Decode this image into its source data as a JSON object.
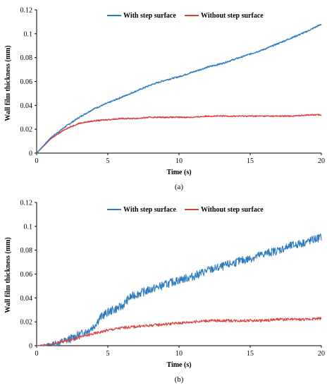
{
  "colors": {
    "with": "#2e7bbf",
    "without": "#d9403f",
    "axis": "#000000"
  },
  "panels": [
    {
      "label": "(a)",
      "legend": [
        "With step surface",
        "Without step surface"
      ],
      "xlabel": "Time (s)",
      "ylabel": "Wall film thickness (mm)",
      "x_ticks": [
        "0",
        "5",
        "10",
        "15",
        "20"
      ],
      "y_ticks": [
        "0",
        "0.02",
        "0.04",
        "0.06",
        "0.08",
        "0.1",
        "0.12"
      ]
    },
    {
      "label": "(b)",
      "legend": [
        "With step surface",
        "Without step surface"
      ],
      "xlabel": "Time (s)",
      "ylabel": "Wall film thickness (mm)",
      "x_ticks": [
        "0",
        "5",
        "10",
        "15",
        "20"
      ],
      "y_ticks": [
        "0",
        "0.02",
        "0.04",
        "0.06",
        "0.08",
        "0.1",
        "0.12"
      ]
    }
  ],
  "chart_data": [
    {
      "type": "line",
      "xlabel": "Time (s)",
      "ylabel": "Wall film thickness (mm)",
      "xlim": [
        0,
        20
      ],
      "ylim": [
        0,
        0.12
      ],
      "legend_position": "top",
      "series": [
        {
          "name": "With step surface",
          "color": "#2e7bbf",
          "x": [
            0,
            1,
            2,
            3,
            4,
            5,
            6,
            7,
            8,
            9,
            10,
            11,
            12,
            13,
            14,
            15,
            16,
            17,
            18,
            19,
            20
          ],
          "y": [
            0,
            0.013,
            0.022,
            0.03,
            0.037,
            0.042,
            0.047,
            0.052,
            0.057,
            0.061,
            0.064,
            0.068,
            0.072,
            0.075,
            0.079,
            0.083,
            0.087,
            0.092,
            0.097,
            0.102,
            0.108
          ]
        },
        {
          "name": "Without step surface",
          "color": "#d9403f",
          "x": [
            0,
            1,
            2,
            3,
            4,
            5,
            6,
            7,
            8,
            9,
            10,
            11,
            12,
            13,
            14,
            15,
            16,
            17,
            18,
            19,
            20
          ],
          "y": [
            0,
            0.012,
            0.02,
            0.025,
            0.027,
            0.028,
            0.029,
            0.029,
            0.03,
            0.03,
            0.03,
            0.03,
            0.031,
            0.031,
            0.031,
            0.031,
            0.031,
            0.031,
            0.031,
            0.032,
            0.032
          ]
        }
      ]
    },
    {
      "type": "line",
      "xlabel": "Time (s)",
      "ylabel": "Wall film thickness (mm)",
      "xlim": [
        0,
        20
      ],
      "ylim": [
        0,
        0.12
      ],
      "legend_position": "top",
      "series": [
        {
          "name": "With step surface",
          "color": "#2e7bbf",
          "x": [
            0,
            1,
            2,
            3,
            3.5,
            4,
            4.5,
            5,
            6,
            6.5,
            7,
            8,
            9,
            10,
            11,
            12,
            13,
            14,
            15,
            16,
            17,
            18,
            19,
            20
          ],
          "y": [
            0,
            0.001,
            0.004,
            0.009,
            0.012,
            0.016,
            0.024,
            0.028,
            0.033,
            0.04,
            0.043,
            0.047,
            0.051,
            0.055,
            0.058,
            0.063,
            0.066,
            0.07,
            0.073,
            0.077,
            0.08,
            0.084,
            0.087,
            0.091
          ]
        },
        {
          "name": "Without step surface",
          "color": "#d9403f",
          "x": [
            0,
            1,
            2,
            3,
            4,
            5,
            6,
            7,
            8,
            9,
            10,
            11,
            12,
            13,
            14,
            15,
            16,
            17,
            18,
            19,
            20
          ],
          "y": [
            0,
            0.001,
            0.004,
            0.007,
            0.01,
            0.013,
            0.015,
            0.016,
            0.017,
            0.018,
            0.019,
            0.02,
            0.021,
            0.021,
            0.021,
            0.021,
            0.021,
            0.022,
            0.022,
            0.022,
            0.023
          ]
        }
      ]
    }
  ]
}
